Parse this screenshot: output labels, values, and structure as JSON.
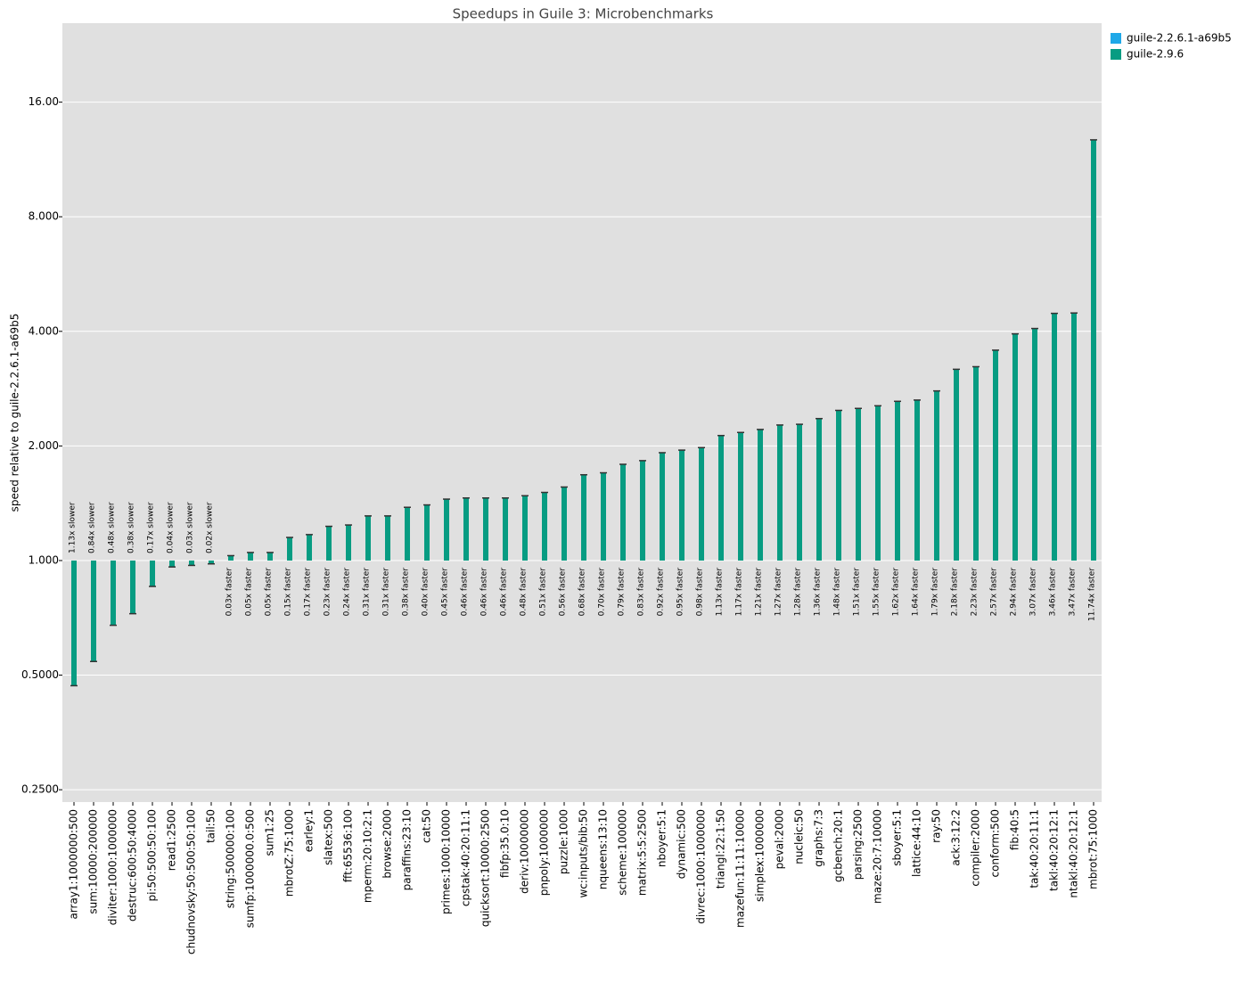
{
  "chart_data": {
    "type": "bar",
    "title": "Speedups in Guile 3: Microbenchmarks",
    "y_label": "speed relative to guile-2.2.6.1-a69b5",
    "log_scale": true,
    "grid": true,
    "legend": "upper right",
    "ylim": [
      0.232,
      25.8
    ],
    "yticks": [
      {
        "value": 0.25,
        "label": "0.2500"
      },
      {
        "value": 0.5,
        "label": "0.5000"
      },
      {
        "value": 1,
        "label": "1.000"
      },
      {
        "value": 2,
        "label": "2.000"
      },
      {
        "value": 4,
        "label": "4.000"
      },
      {
        "value": 8,
        "label": "8.000"
      },
      {
        "value": 16,
        "label": "16.00"
      }
    ],
    "categories": [
      "array1:1000000:500",
      "sum:10000:200000",
      "diviter:1000:1000000",
      "destruc:600:50:4000",
      "pi:50:500:50:100",
      "read1:2500",
      "chudnovsky:50:500:50:100",
      "tail:50",
      "string:500000:100",
      "sumfp:1000000.0:500",
      "sum1:25",
      "mbrotZ:75:1000",
      "earley:1",
      "slatex:500",
      "fft:65536:100",
      "mperm:20:10:2:1",
      "browse:2000",
      "paraffins:23:10",
      "cat:50",
      "primes:1000:10000",
      "cpstak:40:20:11:1",
      "quicksort:10000:2500",
      "fibfp:35.0:10",
      "deriv:10000000",
      "pnpoly:1000000",
      "puzzle:1000",
      "wc:inputs/bib:50",
      "nqueens:13:10",
      "scheme:100000",
      "matrix:5:5:2500",
      "nboyer:5:1",
      "dynamic:500",
      "divrec:1000:1000000",
      "triangl:22:1:50",
      "mazefun:11:11:10000",
      "simplex:1000000",
      "peval:2000",
      "nucleic:50",
      "graphs:7:3",
      "gcbench:20:1",
      "parsing:2500",
      "maze:20:7:10000",
      "sboyer:5:1",
      "lattice:44:10",
      "ray:50",
      "ack:3:12:2",
      "compiler:2000",
      "conform:500",
      "fib:40:5",
      "tak:40:20:11:1",
      "takl:40:20:12:1",
      "ntakl:40:20:12:1",
      "mbrot:75:1000"
    ],
    "series": [
      {
        "name": "guile-2.2.6.1-a69b5",
        "color": "#1fa8e8"
      },
      {
        "name": "guile-2.9.6",
        "color": "#079c82",
        "values": [
          0.469,
          0.543,
          0.676,
          0.725,
          0.855,
          0.962,
          0.971,
          0.98,
          1.03,
          1.05,
          1.05,
          1.15,
          1.17,
          1.23,
          1.24,
          1.31,
          1.31,
          1.38,
          1.4,
          1.45,
          1.46,
          1.46,
          1.46,
          1.48,
          1.51,
          1.56,
          1.68,
          1.7,
          1.79,
          1.83,
          1.92,
          1.95,
          1.98,
          2.13,
          2.17,
          2.21,
          2.27,
          2.28,
          2.36,
          2.48,
          2.51,
          2.55,
          2.62,
          2.64,
          2.79,
          3.18,
          3.23,
          3.57,
          3.94,
          4.07,
          4.46,
          4.47,
          12.74
        ],
        "value_labels": [
          "1.13x slower",
          "0.84x slower",
          "0.48x slower",
          "0.38x slower",
          "0.17x slower",
          "0.04x slower",
          "0.03x slower",
          "0.02x slower",
          "0.03x faster",
          "0.05x faster",
          "0.05x faster",
          "0.15x faster",
          "0.17x faster",
          "0.23x faster",
          "0.24x faster",
          "0.31x faster",
          "0.31x faster",
          "0.38x faster",
          "0.40x faster",
          "0.45x faster",
          "0.46x faster",
          "0.46x faster",
          "0.46x faster",
          "0.48x faster",
          "0.51x faster",
          "0.56x faster",
          "0.68x faster",
          "0.70x faster",
          "0.79x faster",
          "0.83x faster",
          "0.92x faster",
          "0.95x faster",
          "0.98x faster",
          "1.13x faster",
          "1.17x faster",
          "1.21x faster",
          "1.27x faster",
          "1.28x faster",
          "1.36x faster",
          "1.48x faster",
          "1.51x faster",
          "1.55x faster",
          "1.62x faster",
          "1.64x faster",
          "1.79x faster",
          "2.18x faster",
          "2.23x faster",
          "2.57x faster",
          "2.94x faster",
          "3.07x faster",
          "3.46x faster",
          "3.47x faster",
          "11.74x faster"
        ]
      }
    ]
  }
}
